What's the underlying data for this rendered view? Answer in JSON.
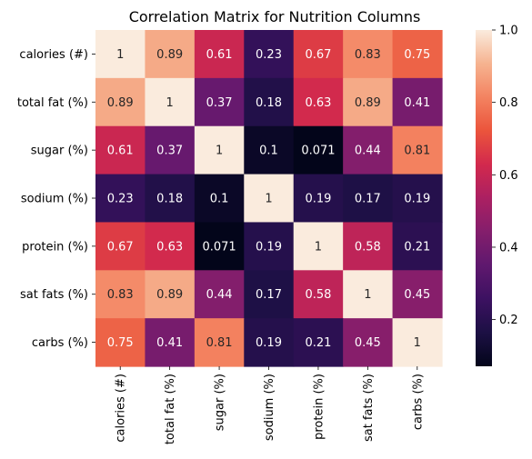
{
  "chart_data": {
    "type": "heatmap",
    "title": "Correlation Matrix for Nutrition Columns",
    "rows": [
      "calories (#)",
      "total fat (%)",
      "sugar (%)",
      "sodium (%)",
      "protein (%)",
      "sat fats (%)",
      "carbs (%)"
    ],
    "columns": [
      "calories (#)",
      "total fat (%)",
      "sugar (%)",
      "sodium (%)",
      "protein (%)",
      "sat fats (%)",
      "carbs (%)"
    ],
    "values": [
      [
        1,
        0.89,
        0.61,
        0.23,
        0.67,
        0.83,
        0.75
      ],
      [
        0.89,
        1,
        0.37,
        0.18,
        0.63,
        0.89,
        0.41
      ],
      [
        0.61,
        0.37,
        1,
        0.1,
        0.071,
        0.44,
        0.81
      ],
      [
        0.23,
        0.18,
        0.1,
        1,
        0.19,
        0.17,
        0.19
      ],
      [
        0.67,
        0.63,
        0.071,
        0.19,
        1,
        0.58,
        0.21
      ],
      [
        0.83,
        0.89,
        0.44,
        0.17,
        0.58,
        1,
        0.45
      ],
      [
        0.75,
        0.41,
        0.81,
        0.19,
        0.21,
        0.45,
        1
      ]
    ],
    "value_labels": [
      [
        "1",
        "0.89",
        "0.61",
        "0.23",
        "0.67",
        "0.83",
        "0.75"
      ],
      [
        "0.89",
        "1",
        "0.37",
        "0.18",
        "0.63",
        "0.89",
        "0.41"
      ],
      [
        "0.61",
        "0.37",
        "1",
        "0.1",
        "0.071",
        "0.44",
        "0.81"
      ],
      [
        "0.23",
        "0.18",
        "0.1",
        "1",
        "0.19",
        "0.17",
        "0.19"
      ],
      [
        "0.67",
        "0.63",
        "0.071",
        "0.19",
        "1",
        "0.58",
        "0.21"
      ],
      [
        "0.83",
        "0.89",
        "0.44",
        "0.17",
        "0.58",
        "1",
        "0.45"
      ],
      [
        "0.75",
        "0.41",
        "0.81",
        "0.19",
        "0.21",
        "0.45",
        "1"
      ]
    ],
    "colormap": "rocket",
    "vmin": 0.071,
    "vmax": 1,
    "colorbar_ticks": [
      0.2,
      0.4,
      0.6,
      0.8,
      1.0
    ],
    "colorbar_tick_labels": [
      "0.2",
      "0.4",
      "0.6",
      "0.8",
      "1.0"
    ],
    "annotated": true,
    "grid": false
  }
}
